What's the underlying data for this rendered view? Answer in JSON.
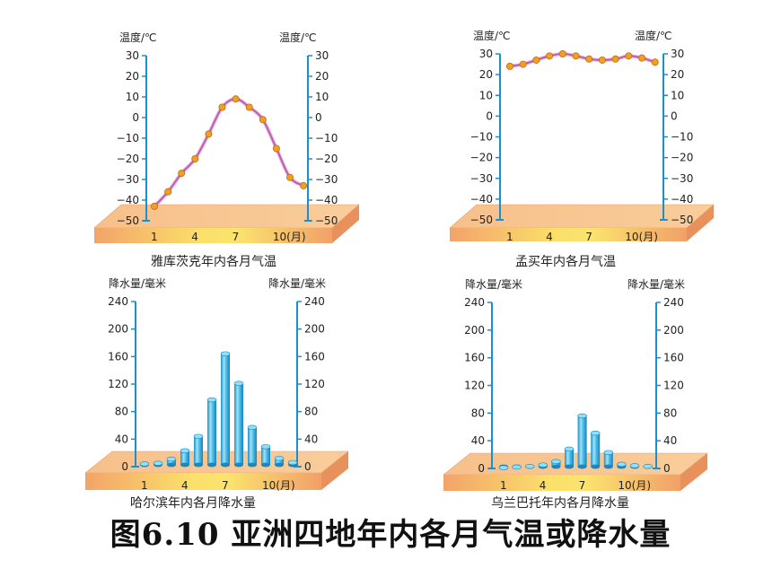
{
  "figure_title": "图6.10 亚洲四地年内各月气温或降水量",
  "colors": {
    "axis": "#1a8fd1",
    "line": "#b05aa8",
    "marker": "#f0a020",
    "bar": "#3ab0e0",
    "platform": "#f4a868"
  },
  "chart_data": [
    {
      "type": "line",
      "caption": "雅库茨克年内各月气温",
      "ylabel_left": "温度/℃",
      "ylabel_right": "温度/℃",
      "ylim": [
        -50,
        30
      ],
      "yticks": [
        "30",
        "20",
        "10",
        "0",
        "−10",
        "−20",
        "−30",
        "−40",
        "−50"
      ],
      "x_ticks": [
        "1",
        "4",
        "7",
        "10(月)"
      ],
      "x": [
        1,
        2,
        3,
        4,
        5,
        6,
        7,
        8,
        9,
        10,
        11,
        12
      ],
      "values": [
        -43,
        -36,
        -27,
        -20,
        -8,
        5,
        9,
        5,
        -1,
        -15,
        -29,
        -33
      ]
    },
    {
      "type": "line",
      "caption": "孟买年内各月气温",
      "ylabel_left": "温度/℃",
      "ylabel_right": "温度/℃",
      "ylim": [
        -50,
        30
      ],
      "yticks": [
        "30",
        "20",
        "10",
        "0",
        "−10",
        "−20",
        "−30",
        "−40",
        "−50"
      ],
      "x_ticks": [
        "1",
        "4",
        "7",
        "10(月)"
      ],
      "x": [
        1,
        2,
        3,
        4,
        5,
        6,
        7,
        8,
        9,
        10,
        11,
        12
      ],
      "values": [
        24,
        25,
        27,
        29,
        30,
        29,
        27.5,
        27,
        27.5,
        29,
        28,
        26
      ]
    },
    {
      "type": "bar",
      "caption": "哈尔滨年内各月降水量",
      "ylabel_left": "降水量/毫米",
      "ylabel_right": "降水量/毫米",
      "ylim": [
        0,
        240
      ],
      "yticks": [
        "240",
        "200",
        "160",
        "120",
        "80",
        "40",
        "0"
      ],
      "x_ticks": [
        "1",
        "4",
        "7",
        "10(月)"
      ],
      "x": [
        1,
        2,
        3,
        4,
        5,
        6,
        7,
        8,
        9,
        10,
        11,
        12
      ],
      "values": [
        4,
        5,
        11,
        23,
        44,
        97,
        164,
        121,
        57,
        29,
        12,
        6
      ]
    },
    {
      "type": "bar",
      "caption": "乌兰巴托年内各月降水量",
      "ylabel_left": "降水量/毫米",
      "ylabel_right": "降水量/毫米",
      "ylim": [
        0,
        240
      ],
      "yticks": [
        "240",
        "200",
        "160",
        "120",
        "80",
        "40",
        "0"
      ],
      "x_ticks": [
        "1",
        "4",
        "7",
        "10(月)"
      ],
      "x": [
        1,
        2,
        3,
        4,
        5,
        6,
        7,
        8,
        9,
        10,
        11,
        12
      ],
      "values": [
        1,
        2,
        3,
        5,
        10,
        28,
        76,
        51,
        23,
        6,
        4,
        3
      ]
    }
  ]
}
